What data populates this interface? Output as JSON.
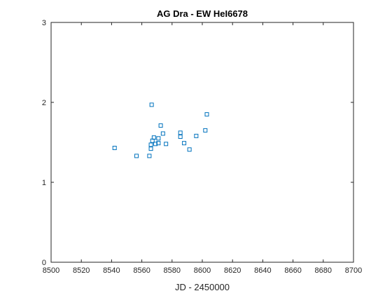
{
  "chart_data": {
    "type": "scatter",
    "title": "AG Dra - EW HeI6678",
    "xlabel": "JD - 2450000",
    "ylabel": "",
    "xlim": [
      8500,
      8700
    ],
    "ylim": [
      0,
      3
    ],
    "xticks": [
      8500,
      8520,
      8540,
      8560,
      8580,
      8600,
      8620,
      8640,
      8660,
      8680,
      8700
    ],
    "yticks": [
      0,
      1,
      2,
      3
    ],
    "grid": false,
    "marker": "square",
    "marker_color": "#0072BD",
    "series": [
      {
        "x": [
          8542,
          8556.5,
          8565,
          8566,
          8566,
          8566.5,
          8567,
          8568,
          8569,
          8571,
          8571,
          8572.5,
          8574,
          8576,
          8585.5,
          8585.5,
          8588,
          8591.5,
          8596,
          8602,
          8603
        ],
        "y": [
          1.43,
          1.33,
          1.33,
          1.42,
          1.47,
          1.97,
          1.52,
          1.56,
          1.48,
          1.49,
          1.55,
          1.71,
          1.61,
          1.48,
          1.62,
          1.57,
          1.49,
          1.41,
          1.58,
          1.65,
          1.85
        ]
      }
    ]
  }
}
